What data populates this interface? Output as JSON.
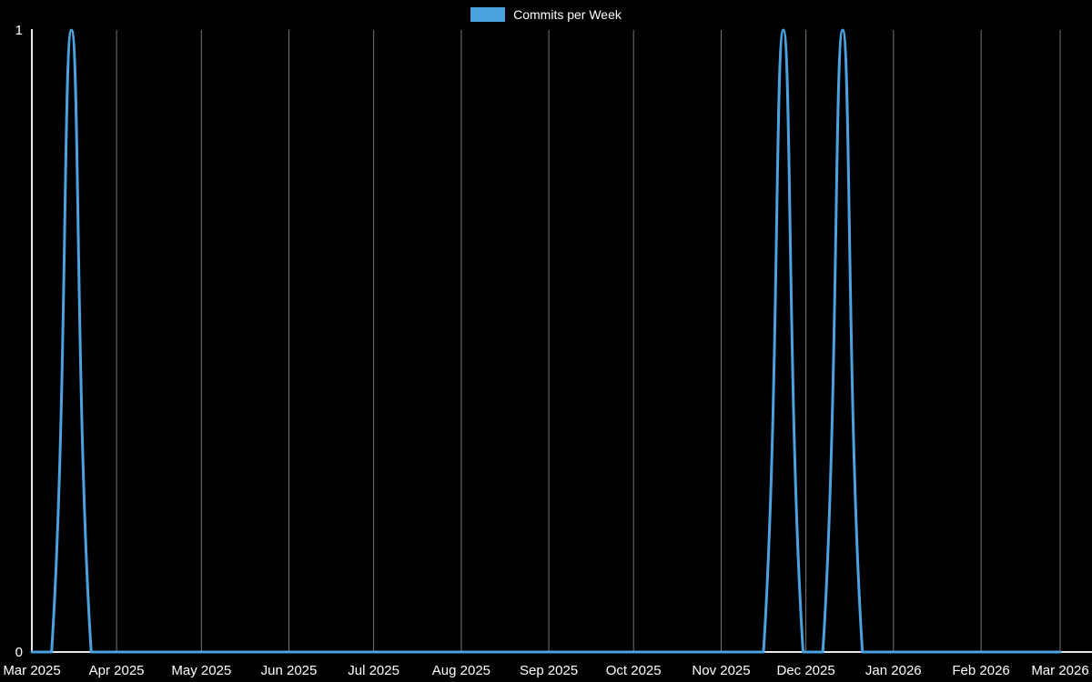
{
  "legend": {
    "label": "Commits per Week"
  },
  "colors": {
    "line": "#4aa2e0",
    "axis": "#e8e8e8",
    "grid": "#757575",
    "text": "#ffffff",
    "background": "#000000"
  },
  "chart_data": {
    "type": "line",
    "title": "",
    "xlabel": "",
    "ylabel": "",
    "ylim": [
      0,
      1
    ],
    "y_ticks": [
      0,
      1
    ],
    "grid": "vertical",
    "legend_position": "top",
    "x_range": [
      "2025-03-02",
      "2026-03-01"
    ],
    "x_tick_labels": [
      "Mar 2025",
      "Apr 2025",
      "May 2025",
      "Jun 2025",
      "Jul 2025",
      "Aug 2025",
      "Sep 2025",
      "Oct 2025",
      "Nov 2025",
      "Dec 2025",
      "Jan 2026",
      "Feb 2026",
      "Mar 2026"
    ],
    "x_tick_dates": [
      "2025-03-02",
      "2025-04-01",
      "2025-05-01",
      "2025-06-01",
      "2025-07-01",
      "2025-08-01",
      "2025-09-01",
      "2025-10-01",
      "2025-11-01",
      "2025-12-01",
      "2026-01-01",
      "2026-02-01",
      "2026-03-01"
    ],
    "series": [
      {
        "name": "Commits per Week",
        "x": [
          "2025-03-02",
          "2025-03-09",
          "2025-03-16",
          "2025-03-23",
          "2025-03-30",
          "2025-04-06",
          "2025-04-13",
          "2025-04-20",
          "2025-04-27",
          "2025-05-04",
          "2025-05-11",
          "2025-05-18",
          "2025-05-25",
          "2025-06-01",
          "2025-06-08",
          "2025-06-15",
          "2025-06-22",
          "2025-06-29",
          "2025-07-06",
          "2025-07-13",
          "2025-07-20",
          "2025-07-27",
          "2025-08-03",
          "2025-08-10",
          "2025-08-17",
          "2025-08-24",
          "2025-08-31",
          "2025-09-07",
          "2025-09-14",
          "2025-09-21",
          "2025-09-28",
          "2025-10-05",
          "2025-10-12",
          "2025-10-19",
          "2025-10-26",
          "2025-11-02",
          "2025-11-09",
          "2025-11-16",
          "2025-11-23",
          "2025-11-30",
          "2025-12-07",
          "2025-12-14",
          "2025-12-21",
          "2025-12-28",
          "2026-01-04",
          "2026-01-11",
          "2026-01-18",
          "2026-01-25",
          "2026-02-01",
          "2026-02-08",
          "2026-02-15",
          "2026-02-22",
          "2026-03-01"
        ],
        "values": [
          0,
          0,
          1,
          0,
          0,
          0,
          0,
          0,
          0,
          0,
          0,
          0,
          0,
          0,
          0,
          0,
          0,
          0,
          0,
          0,
          0,
          0,
          0,
          0,
          0,
          0,
          0,
          0,
          0,
          0,
          0,
          0,
          0,
          0,
          0,
          0,
          0,
          0,
          1,
          0,
          0,
          1,
          0,
          0,
          0,
          0,
          0,
          0,
          0,
          0,
          0,
          0,
          0
        ]
      }
    ]
  }
}
